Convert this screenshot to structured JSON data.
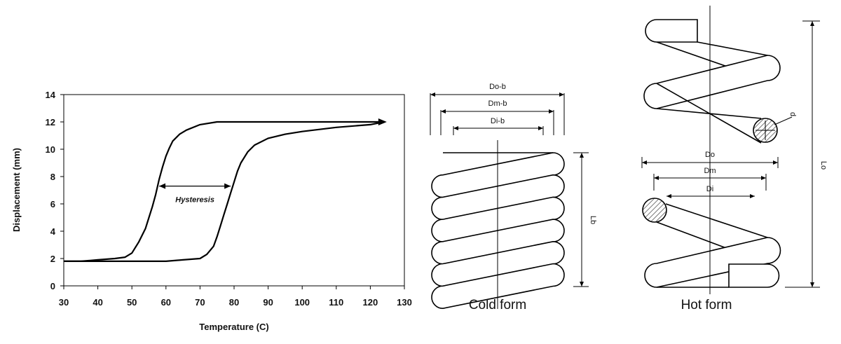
{
  "chart_data": {
    "type": "line",
    "title": "",
    "xlabel": "Temperature (C)",
    "ylabel": "Displacement (mm)",
    "xlim": [
      30,
      130
    ],
    "ylim": [
      0,
      14
    ],
    "xticks": [
      "30",
      "40",
      "50",
      "60",
      "70",
      "80",
      "90",
      "100",
      "110",
      "120",
      "130"
    ],
    "yticks": [
      "0",
      "2",
      "4",
      "6",
      "8",
      "10",
      "12",
      "14"
    ],
    "grid": false,
    "legend": "none",
    "series": [
      {
        "x": [
          30,
          35,
          40,
          45,
          48,
          50,
          52,
          54,
          55,
          56,
          57,
          58,
          59,
          60,
          61,
          62,
          64,
          66,
          70,
          75,
          80,
          90,
          100,
          110,
          120,
          124
        ],
        "y": [
          1.8,
          1.8,
          1.9,
          2.0,
          2.1,
          2.4,
          3.2,
          4.2,
          5.0,
          5.8,
          6.7,
          7.8,
          8.7,
          9.5,
          10.1,
          10.6,
          11.1,
          11.4,
          11.8,
          12.0,
          12.0,
          12.0,
          12.0,
          12.0,
          12.0,
          12.0
        ]
      },
      {
        "x": [
          124,
          120,
          110,
          100,
          95,
          90,
          86,
          84,
          82,
          81,
          80,
          79,
          78,
          77,
          76,
          75,
          74,
          72,
          70,
          65,
          60,
          55,
          50,
          45,
          40,
          35,
          30
        ],
        "y": [
          12.0,
          11.8,
          11.6,
          11.3,
          11.1,
          10.8,
          10.3,
          9.8,
          9.0,
          8.4,
          7.6,
          6.8,
          6.0,
          5.2,
          4.4,
          3.6,
          2.9,
          2.3,
          2.0,
          1.9,
          1.8,
          1.8,
          1.8,
          1.8,
          1.8,
          1.8,
          1.8
        ]
      }
    ],
    "annotations": [
      {
        "text": "Hysteresis",
        "x_from": 58,
        "x_to": 79,
        "y": 7.3
      }
    ]
  },
  "diagrams": {
    "cold": {
      "caption": "Cold form",
      "labels": [
        "Do-b",
        "Dm-b",
        "Di-b"
      ],
      "height_label": "Lb"
    },
    "hot": {
      "caption": "Hot form",
      "labels": [
        "Do",
        "Dm",
        "Di"
      ],
      "height_label": "Lo",
      "wire_label": "d"
    }
  },
  "colors": {
    "ink": "#000000",
    "background": "#ffffff",
    "hatch": "#555555"
  }
}
